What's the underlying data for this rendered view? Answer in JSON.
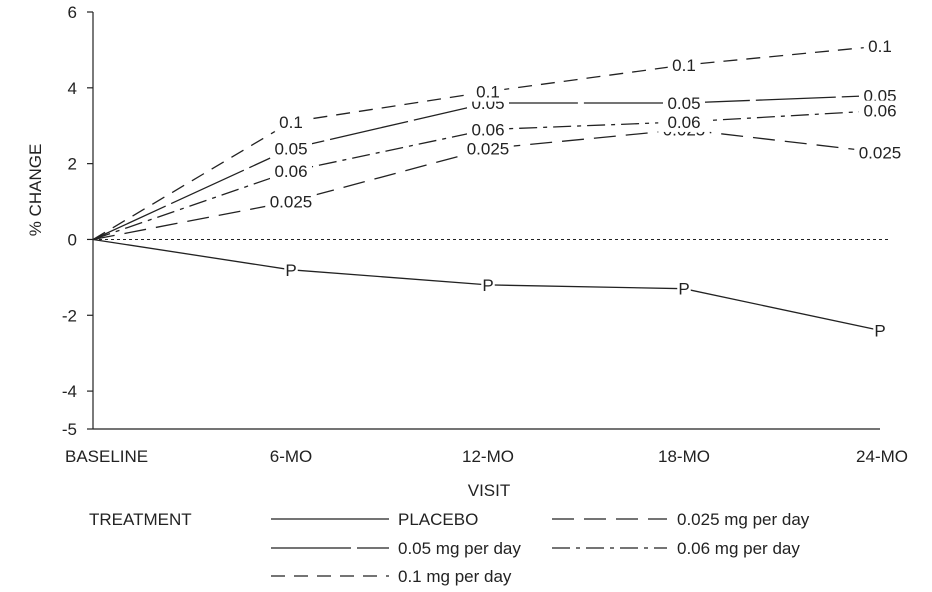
{
  "chart_data": {
    "type": "line",
    "xlabel": "VISIT",
    "ylabel": "% CHANGE",
    "categories": [
      "BASELINE",
      "6-MO",
      "12-MO",
      "18-MO",
      "24-MO"
    ],
    "ylim": [
      -5,
      6
    ],
    "yticks": [
      "6",
      "4",
      "2",
      "0",
      "-2",
      "-4",
      "-5"
    ],
    "grid": false,
    "reference_line": 0,
    "legend": {
      "title": "TREATMENT",
      "placement": "bottom"
    },
    "series": [
      {
        "name": "PLACEBO",
        "marker": "P",
        "style": "solid",
        "values": [
          0,
          -0.8,
          -1.2,
          -1.3,
          -2.4
        ]
      },
      {
        "name": "0.025 mg per day",
        "marker": "0.025",
        "style": "long-dash",
        "values": [
          0,
          1.0,
          2.4,
          2.9,
          2.3
        ]
      },
      {
        "name": "0.05 mg per day",
        "marker": "0.05",
        "style": "long-dash-short",
        "values": [
          0,
          2.4,
          3.6,
          3.6,
          3.8
        ]
      },
      {
        "name": "0.06 mg per day",
        "marker": "0.06",
        "style": "dash-dot",
        "values": [
          0,
          1.8,
          2.9,
          3.1,
          3.4
        ]
      },
      {
        "name": "0.1 mg per day",
        "marker": "0.1",
        "style": "dash",
        "values": [
          0,
          3.1,
          3.9,
          4.6,
          5.1
        ]
      }
    ]
  }
}
